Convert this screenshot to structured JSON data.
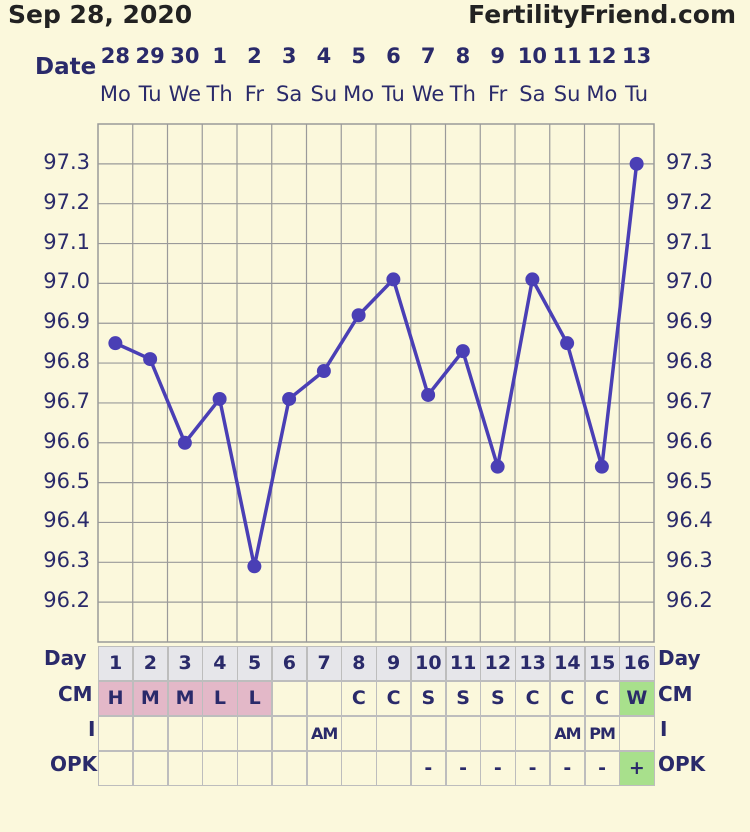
{
  "header": {
    "start_date": "Sep 28, 2020",
    "site": "FertilityFriend.com",
    "date_label": "Date"
  },
  "colors": {
    "background": "#fbf8dc",
    "line": "#4a3fb5",
    "grid": "#9a9a9a",
    "menses": "#e3b8c8",
    "highlight": "#a8e08c"
  },
  "chart_data": {
    "type": "line",
    "categories": [
      "28",
      "29",
      "30",
      "1",
      "2",
      "3",
      "4",
      "5",
      "6",
      "7",
      "8",
      "9",
      "10",
      "11",
      "12",
      "13"
    ],
    "weekdays": [
      "Mo",
      "Tu",
      "We",
      "Th",
      "Fr",
      "Sa",
      "Su",
      "Mo",
      "Tu",
      "We",
      "Th",
      "Fr",
      "Sa",
      "Su",
      "Mo",
      "Tu"
    ],
    "values": [
      96.85,
      96.81,
      96.6,
      96.71,
      96.29,
      96.71,
      96.78,
      96.92,
      97.01,
      96.72,
      96.83,
      96.54,
      97.01,
      96.85,
      96.54,
      97.3
    ],
    "ylim": [
      96.1,
      97.4
    ],
    "yticks": [
      "97.3",
      "97.2",
      "97.1",
      "97.0",
      "96.9",
      "96.8",
      "96.7",
      "96.6",
      "96.5",
      "96.4",
      "96.3",
      "96.2"
    ],
    "grid": true
  },
  "table": {
    "day_label": "Day",
    "days": [
      "1",
      "2",
      "3",
      "4",
      "5",
      "6",
      "7",
      "8",
      "9",
      "10",
      "11",
      "12",
      "13",
      "14",
      "15",
      "16"
    ],
    "cm_label": "CM",
    "cm": [
      "H",
      "M",
      "M",
      "L",
      "L",
      "",
      "",
      "C",
      "C",
      "S",
      "S",
      "S",
      "C",
      "C",
      "C",
      "W"
    ],
    "i_label": "I",
    "i": [
      "",
      "",
      "",
      "",
      "",
      "",
      "AM",
      "",
      "",
      "",
      "",
      "",
      "",
      "AM",
      "PM",
      ""
    ],
    "opk_label": "OPK",
    "opk": [
      "",
      "",
      "",
      "",
      "",
      "",
      "",
      "",
      "",
      "-",
      "-",
      "-",
      "-",
      "-",
      "-",
      "+"
    ]
  }
}
